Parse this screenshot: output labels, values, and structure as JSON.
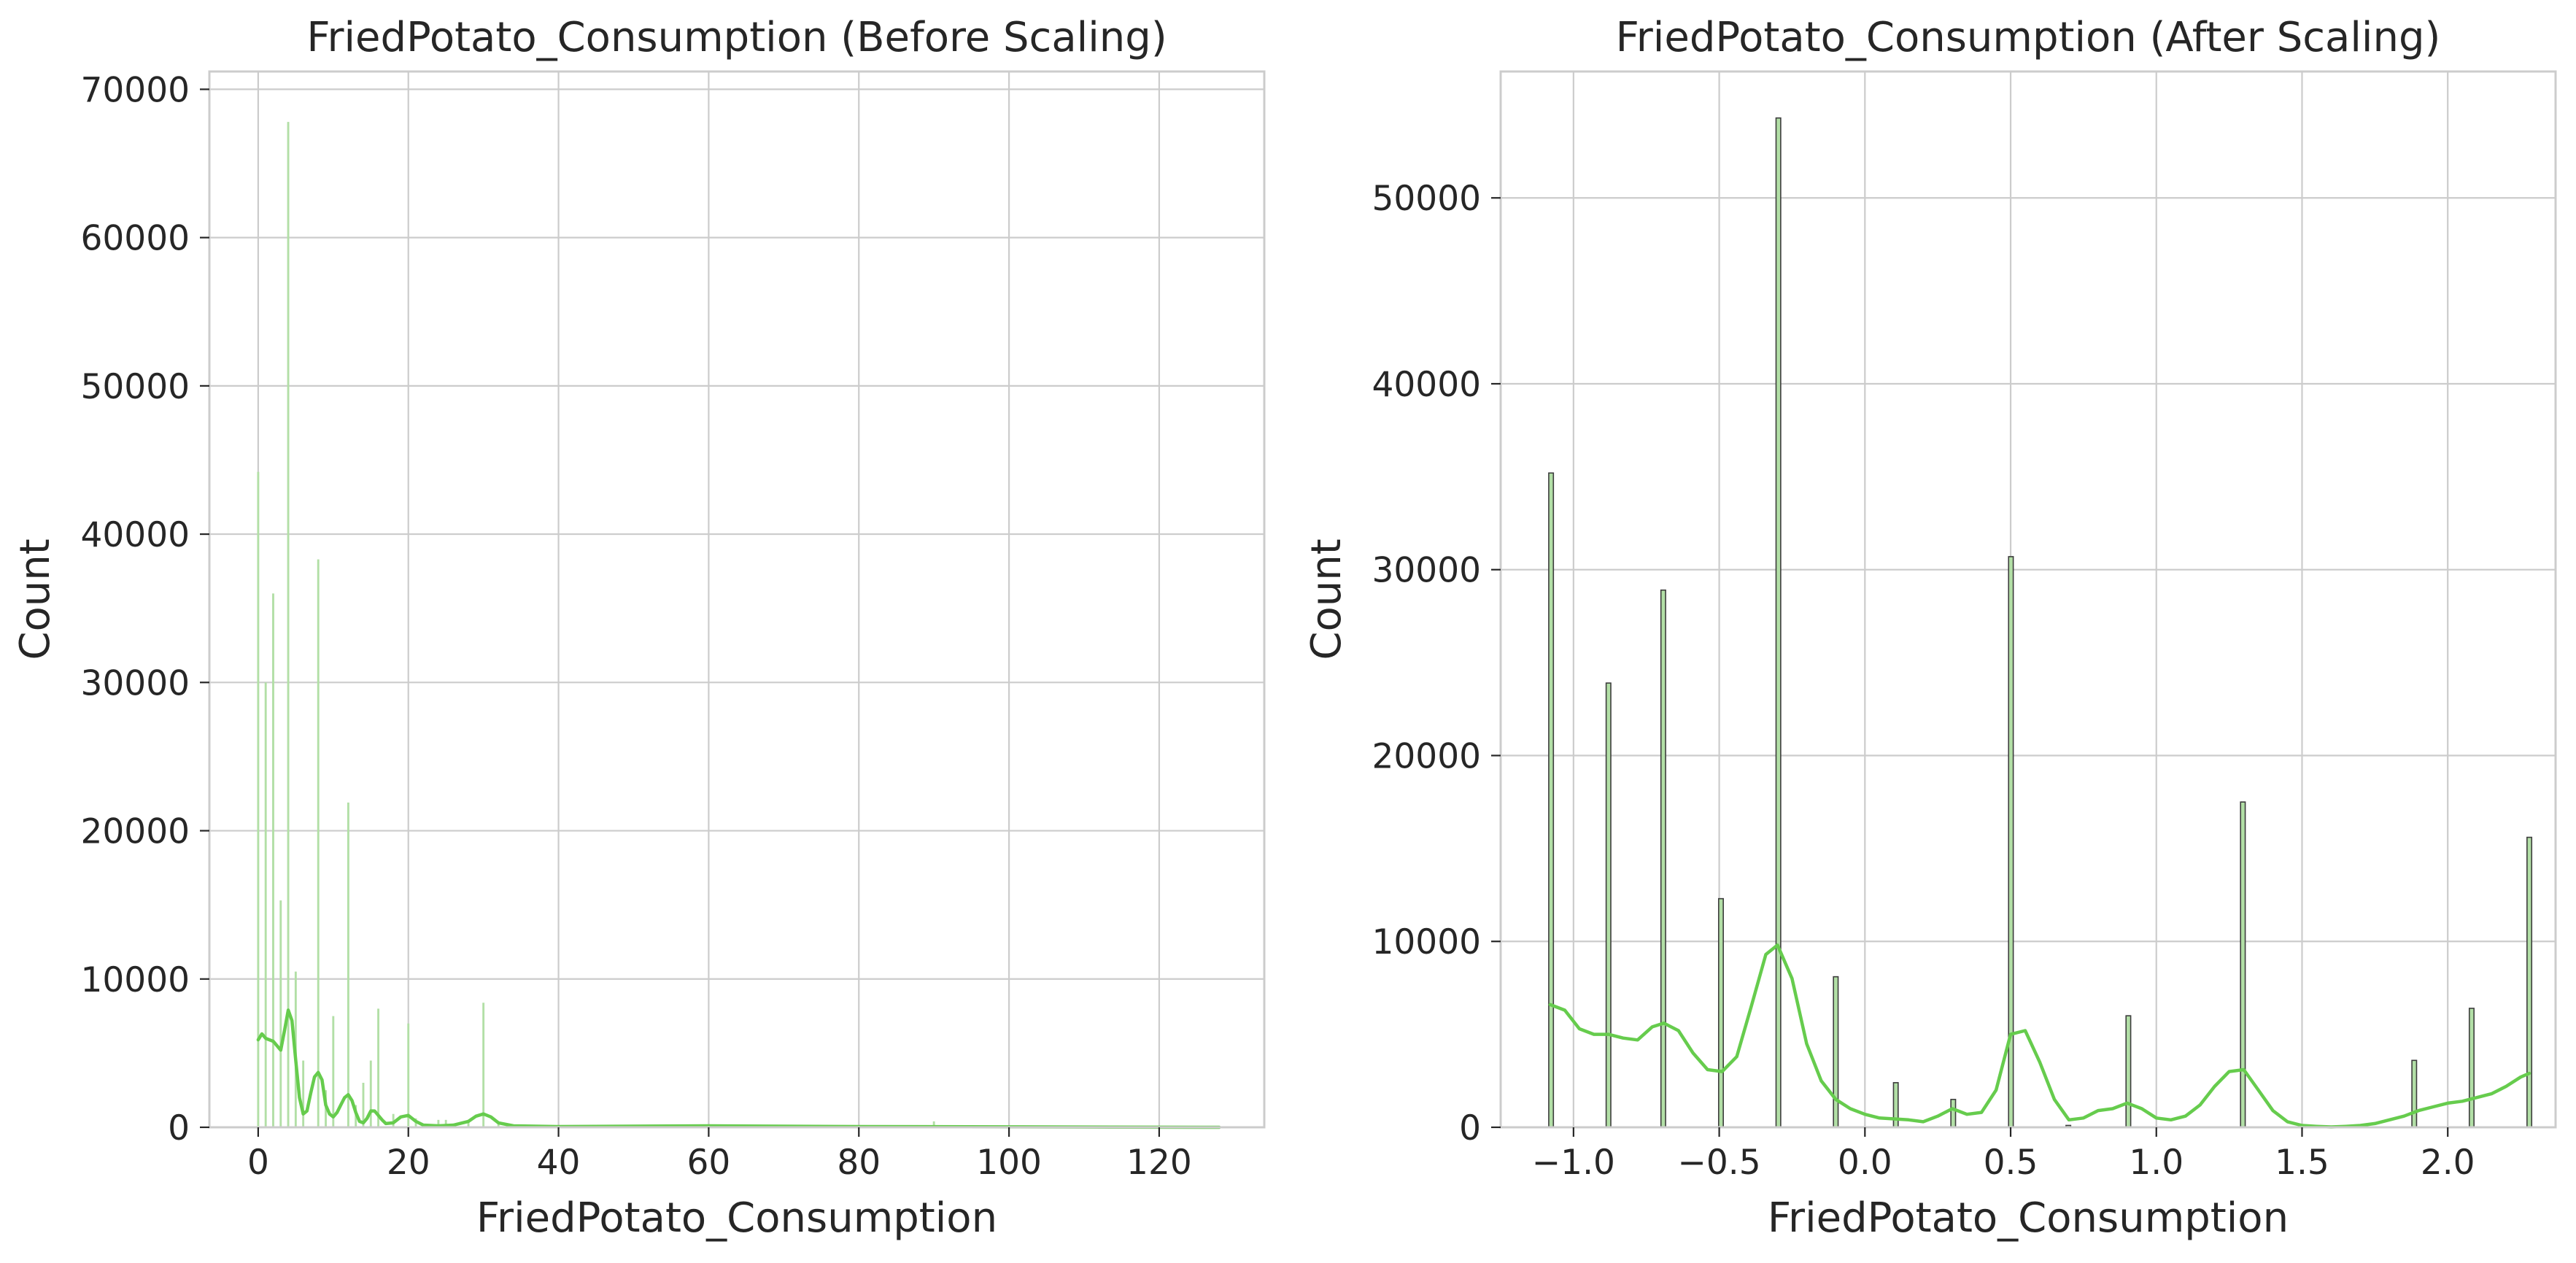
{
  "colors": {
    "line": "#66cc4d",
    "bar": "#b2dfa6",
    "edge": "#3d3d3d"
  },
  "chart_data": [
    {
      "type": "bar",
      "title": "FriedPotato_Consumption (Before Scaling)",
      "xlabel": "FriedPotato_Consumption",
      "ylabel": "Count",
      "xlim": [
        -6.5,
        134
      ],
      "ylim": [
        0,
        71200
      ],
      "xticks": [
        0,
        20,
        40,
        60,
        80,
        100,
        120
      ],
      "yticks": [
        0,
        10000,
        20000,
        30000,
        40000,
        50000,
        60000,
        70000
      ],
      "grid": true,
      "bin_width": 0.28,
      "bars": [
        {
          "x": 0,
          "y": 44200
        },
        {
          "x": 1,
          "y": 30000
        },
        {
          "x": 2,
          "y": 36000
        },
        {
          "x": 3,
          "y": 15300
        },
        {
          "x": 4,
          "y": 67800
        },
        {
          "x": 5,
          "y": 10500
        },
        {
          "x": 6,
          "y": 4500
        },
        {
          "x": 8,
          "y": 38300
        },
        {
          "x": 9,
          "y": 2500
        },
        {
          "x": 10,
          "y": 7500
        },
        {
          "x": 12,
          "y": 21900
        },
        {
          "x": 13,
          "y": 1500
        },
        {
          "x": 14,
          "y": 3000
        },
        {
          "x": 15,
          "y": 4500
        },
        {
          "x": 16,
          "y": 8000
        },
        {
          "x": 18,
          "y": 900
        },
        {
          "x": 20,
          "y": 7000
        },
        {
          "x": 21,
          "y": 600
        },
        {
          "x": 24,
          "y": 500
        },
        {
          "x": 25,
          "y": 500
        },
        {
          "x": 28,
          "y": 500
        },
        {
          "x": 30,
          "y": 8400
        },
        {
          "x": 32,
          "y": 300
        },
        {
          "x": 40,
          "y": 150
        },
        {
          "x": 60,
          "y": 200
        },
        {
          "x": 90,
          "y": 400
        }
      ],
      "kde": {
        "x": [
          0,
          0.5,
          1,
          2,
          3,
          3.5,
          4,
          4.5,
          5,
          5.5,
          6,
          6.5,
          7,
          7.5,
          8,
          8.5,
          9,
          9.5,
          10,
          10.5,
          11,
          11.5,
          12,
          12.5,
          13,
          13.5,
          14,
          14.5,
          15,
          15.5,
          16,
          16.5,
          17,
          18,
          19,
          20,
          21,
          22,
          24,
          26,
          28,
          29,
          30,
          31,
          32,
          34,
          40,
          60,
          80,
          100,
          128
        ],
        "y": [
          5900,
          6300,
          6000,
          5800,
          5200,
          6500,
          7900,
          7200,
          4500,
          2000,
          900,
          1100,
          2300,
          3400,
          3700,
          3200,
          1500,
          900,
          700,
          1000,
          1500,
          2000,
          2200,
          1800,
          1000,
          400,
          300,
          600,
          1100,
          1100,
          800,
          500,
          250,
          300,
          700,
          800,
          400,
          150,
          100,
          150,
          400,
          750,
          900,
          700,
          300,
          100,
          50,
          100,
          50,
          30,
          0
        ]
      }
    },
    {
      "type": "bar",
      "title": "FriedPotato_Consumption (After Scaling)",
      "xlabel": "FriedPotato_Consumption",
      "ylabel": "Count",
      "xlim": [
        -1.25,
        2.37
      ],
      "ylim": [
        0,
        56800
      ],
      "xticks": [
        -1.0,
        -0.5,
        0.0,
        0.5,
        1.0,
        1.5,
        2.0
      ],
      "xtick_labels": [
        "−1.0",
        "−0.5",
        "0.0",
        "0.5",
        "1.0",
        "1.5",
        "2.0"
      ],
      "yticks": [
        0,
        10000,
        20000,
        30000,
        40000,
        50000
      ],
      "grid": true,
      "bin_width": 0.016,
      "bars": [
        {
          "x": -1.077,
          "y": 35200
        },
        {
          "x": -0.88,
          "y": 23900
        },
        {
          "x": -0.692,
          "y": 28900
        },
        {
          "x": -0.494,
          "y": 12300
        },
        {
          "x": -0.297,
          "y": 54300
        },
        {
          "x": -0.1,
          "y": 8100
        },
        {
          "x": 0.106,
          "y": 2400
        },
        {
          "x": 0.303,
          "y": 1500
        },
        {
          "x": 0.501,
          "y": 30700
        },
        {
          "x": 0.698,
          "y": 100
        },
        {
          "x": 0.904,
          "y": 6000
        },
        {
          "x": 1.297,
          "y": 17500
        },
        {
          "x": 1.688,
          "y": 100
        },
        {
          "x": 1.885,
          "y": 3600
        },
        {
          "x": 2.082,
          "y": 6400
        },
        {
          "x": 2.28,
          "y": 15600
        }
      ],
      "kde": {
        "x": [
          -1.08,
          -1.03,
          -0.98,
          -0.93,
          -0.88,
          -0.83,
          -0.78,
          -0.73,
          -0.69,
          -0.64,
          -0.59,
          -0.54,
          -0.49,
          -0.44,
          -0.39,
          -0.34,
          -0.3,
          -0.25,
          -0.2,
          -0.15,
          -0.1,
          -0.05,
          0.0,
          0.05,
          0.1,
          0.15,
          0.2,
          0.25,
          0.3,
          0.35,
          0.4,
          0.45,
          0.5,
          0.55,
          0.6,
          0.65,
          0.7,
          0.75,
          0.8,
          0.85,
          0.9,
          0.95,
          1.0,
          1.05,
          1.1,
          1.15,
          1.2,
          1.25,
          1.3,
          1.35,
          1.4,
          1.45,
          1.5,
          1.55,
          1.6,
          1.65,
          1.7,
          1.75,
          1.8,
          1.85,
          1.9,
          1.95,
          2.0,
          2.05,
          2.1,
          2.15,
          2.2,
          2.25,
          2.28
        ],
        "y": [
          6600,
          6300,
          5300,
          5000,
          5000,
          4800,
          4700,
          5400,
          5600,
          5200,
          4000,
          3100,
          3000,
          3800,
          6500,
          9300,
          9800,
          8000,
          4500,
          2500,
          1500,
          1000,
          700,
          500,
          450,
          400,
          300,
          600,
          1000,
          700,
          800,
          2000,
          5000,
          5200,
          3500,
          1500,
          400,
          500,
          900,
          1000,
          1300,
          1000,
          500,
          400,
          600,
          1200,
          2200,
          3000,
          3100,
          2000,
          900,
          300,
          100,
          50,
          20,
          50,
          100,
          200,
          400,
          600,
          900,
          1100,
          1300,
          1400,
          1600,
          1800,
          2200,
          2700,
          2900
        ]
      }
    }
  ]
}
